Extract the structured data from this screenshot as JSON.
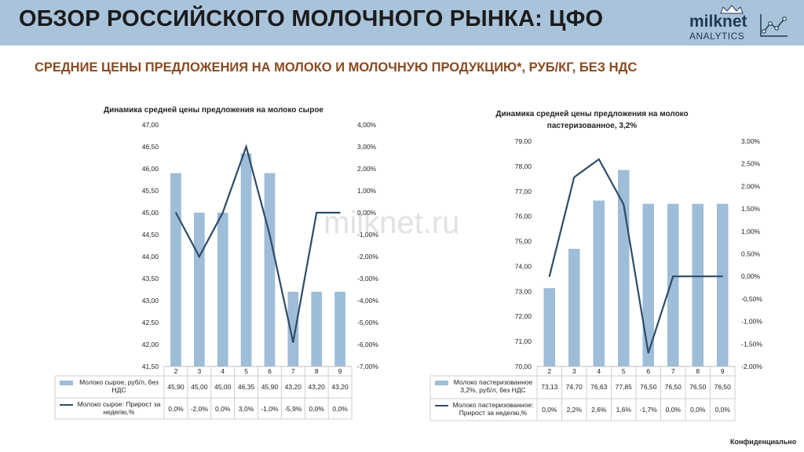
{
  "header": {
    "title": "ОБЗОР РОССИЙСКОГО МОЛОЧНОГО РЫНКА: ЦФО",
    "logo_name": "milknet",
    "logo_sub": "ANALYTICS",
    "bg_color": "#a9c3db"
  },
  "subtitle": "СРЕДНИЕ ЦЕНЫ ПРЕДЛОЖЕНИЯ НА МОЛОКО И МОЛОЧНУЮ ПРОДУКЦИЮ*, РУБ/КГ, БЕЗ НДС",
  "watermark": "milknet.ru",
  "footer": "Конфиденциально",
  "chart_data": [
    {
      "type": "bar",
      "title_lines": [
        "Динамика средней цены предложения на молоко сырое"
      ],
      "categories": [
        "2",
        "3",
        "4",
        "5",
        "6",
        "7",
        "8",
        "9"
      ],
      "series": [
        {
          "name": "Молоко сырое, руб/л, без НДС",
          "kind": "bar",
          "axis": "left",
          "values": [
            45.9,
            45.0,
            45.0,
            46.35,
            45.9,
            43.2,
            43.2,
            43.2
          ],
          "labels": [
            "45,90",
            "45,00",
            "45,00",
            "46,35",
            "45,90",
            "43,20",
            "43,20",
            "43,20"
          ],
          "color": "#9dbdd8"
        },
        {
          "name": "Молоко сырое: Прирост за неделю,%",
          "kind": "line",
          "axis": "right",
          "values": [
            0.0,
            -2.0,
            0.0,
            3.0,
            -1.0,
            -5.9,
            0.0,
            0.0
          ],
          "labels": [
            "0,0%",
            "-2,0%",
            "0,0%",
            "3,0%",
            "-1,0%",
            "-5,9%",
            "0,0%",
            "0,0%"
          ],
          "color": "#2f4c68"
        }
      ],
      "y_left": {
        "min": 41.5,
        "max": 47.0,
        "step": 0.5,
        "decimals": 2
      },
      "y_right": {
        "min": -7.0,
        "max": 4.0,
        "step": 1.0,
        "decimals": 2,
        "unit": "%"
      }
    },
    {
      "type": "bar",
      "title_lines": [
        "Динамика средней цены предложения на молоко",
        "пастеризованное, 3,2%"
      ],
      "categories": [
        "2",
        "3",
        "4",
        "5",
        "6",
        "7",
        "8",
        "9"
      ],
      "series": [
        {
          "name": "Молоко пастеризованное 3,2%, руб/л, без НДС",
          "kind": "bar",
          "axis": "left",
          "values": [
            73.13,
            74.7,
            76.63,
            77.85,
            76.5,
            76.5,
            76.5,
            76.5
          ],
          "labels": [
            "73,13",
            "74,70",
            "76,63",
            "77,85",
            "76,50",
            "76,50",
            "76,50",
            "76,50"
          ],
          "color": "#9dbdd8"
        },
        {
          "name": "Молоко пастеризованное: Прирост за неделю,%",
          "kind": "line",
          "axis": "right",
          "values": [
            0.0,
            2.2,
            2.6,
            1.6,
            -1.7,
            0.0,
            0.0,
            0.0
          ],
          "labels": [
            "0,0%",
            "2,2%",
            "2,6%",
            "1,6%",
            "-1,7%",
            "0,0%",
            "0,0%",
            "0,0%"
          ],
          "color": "#2f4c68"
        }
      ],
      "y_left": {
        "min": 70.0,
        "max": 79.0,
        "step": 1.0,
        "decimals": 2
      },
      "y_right": {
        "min": -2.0,
        "max": 3.0,
        "step": 0.5,
        "decimals": 2,
        "unit": "%"
      }
    }
  ]
}
